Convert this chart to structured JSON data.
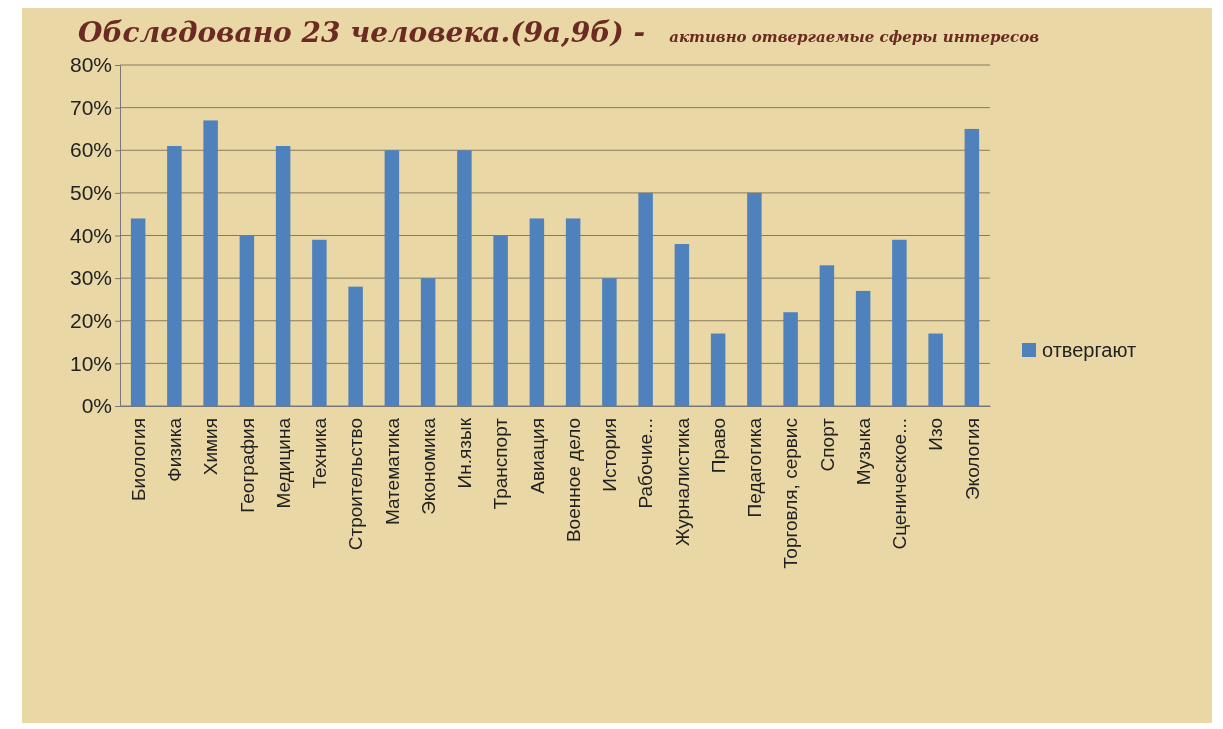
{
  "chart_data": {
    "type": "bar",
    "title": "Обследовано 23 человека.(9а,9б) -",
    "subtitle": "активно отвергаемые  сферы интересов",
    "categories": [
      "Биология",
      "Физика",
      "Химия",
      "География",
      "Медицина",
      "Техника",
      "Строительство",
      "Математика",
      "Экономика",
      "Ин.язык",
      "Транспорт",
      "Авиация",
      "Военное дело",
      "История",
      "Рабочие...",
      "Журналистика",
      "Право",
      "Педагогика",
      "Торговля, сервис",
      "Спорт",
      "Музыка",
      "Сценическое...",
      "Изо",
      "Экология"
    ],
    "series": [
      {
        "name": "отвергают",
        "color": "#4f81bd",
        "values": [
          0.44,
          0.61,
          0.67,
          0.4,
          0.61,
          0.39,
          0.28,
          0.6,
          0.3,
          0.6,
          0.4,
          0.44,
          0.44,
          0.3,
          0.5,
          0.38,
          0.17,
          0.5,
          0.22,
          0.33,
          0.27,
          0.39,
          0.17,
          0.65
        ]
      }
    ],
    "ylim": [
      0,
      0.8
    ],
    "yticks": [
      {
        "value": 0,
        "label": "0%"
      },
      {
        "value": 0.1,
        "label": "10%"
      },
      {
        "value": 0.2,
        "label": "20%"
      },
      {
        "value": 0.3,
        "label": "30%"
      },
      {
        "value": 0.4,
        "label": "40%"
      },
      {
        "value": 0.5,
        "label": "50%"
      },
      {
        "value": 0.6,
        "label": "60%"
      },
      {
        "value": 0.7,
        "label": "70%"
      },
      {
        "value": 0.8,
        "label": "80%"
      }
    ],
    "grid": "y",
    "legend": "right"
  }
}
